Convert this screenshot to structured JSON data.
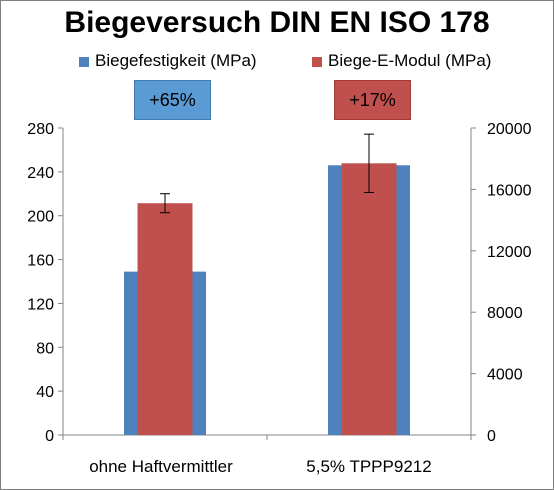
{
  "chart_data": {
    "type": "bar",
    "title": "Biegeversuch DIN EN ISO 178",
    "categories": [
      "ohne Haftvermittler",
      "5,5% TPPP9212"
    ],
    "series": [
      {
        "name": "Biegefestigkeit (MPa)",
        "axis": "left",
        "color": "#4f81bd",
        "values": [
          149,
          246
        ]
      },
      {
        "name": "Biege-E-Modul (MPa)",
        "axis": "right",
        "color": "#c0504d",
        "values": [
          15100,
          17700
        ],
        "error": [
          620,
          1900
        ]
      }
    ],
    "y_left": {
      "ylim": [
        0,
        280
      ],
      "ticks": [
        0,
        40,
        80,
        120,
        160,
        200,
        240,
        280
      ]
    },
    "y_right": {
      "ylim": [
        0,
        20000
      ],
      "ticks": [
        0,
        4000,
        8000,
        12000,
        16000,
        20000
      ]
    },
    "annotations": [
      {
        "text": "+65%",
        "color": "#5b9bd5"
      },
      {
        "text": "+17%",
        "color": "#c0504d"
      }
    ],
    "grid": false,
    "legend": "top"
  }
}
